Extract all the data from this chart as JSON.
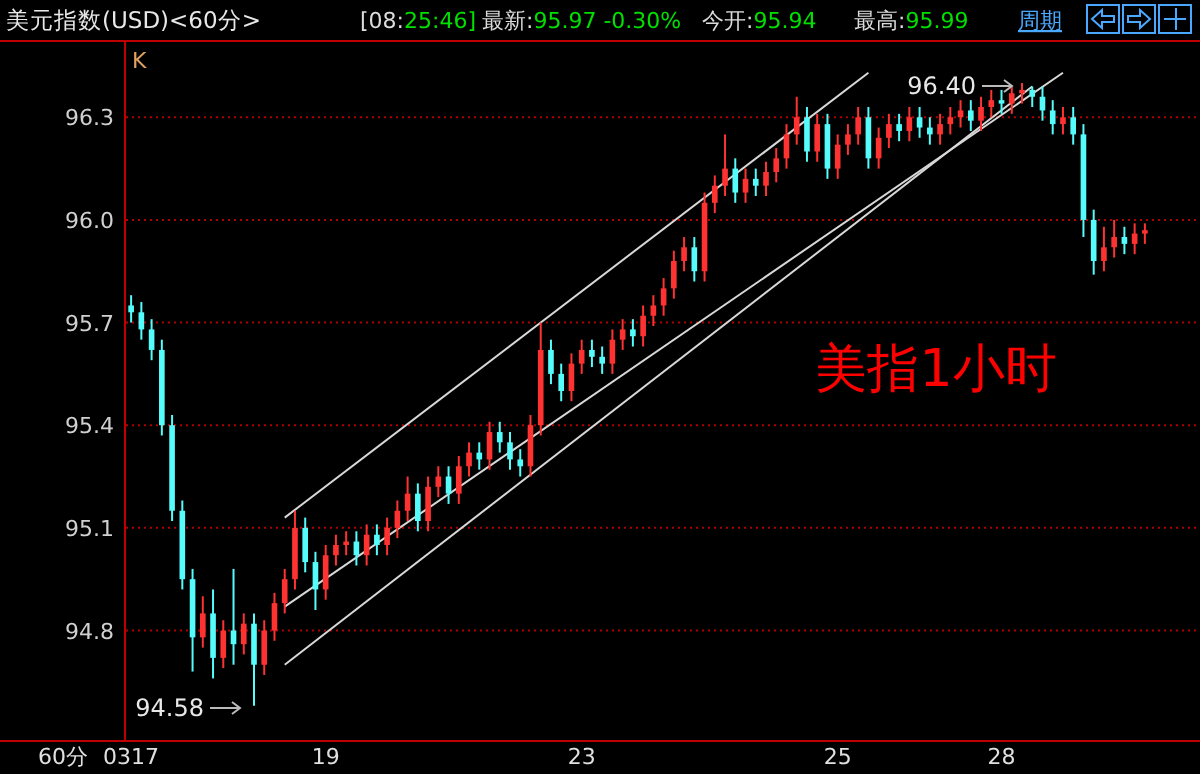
{
  "chart_data": {
    "type": "candlestick",
    "title": "美元指数(USD)<60分>",
    "xlabel": "60分",
    "categories": [
      "0317",
      null,
      null,
      null,
      null,
      null,
      null,
      null,
      null,
      null,
      null,
      null,
      null,
      null,
      null,
      null,
      null,
      null,
      null,
      "19",
      null,
      null,
      null,
      null,
      null,
      null,
      null,
      null,
      null,
      null,
      null,
      null,
      null,
      null,
      null,
      null,
      null,
      null,
      null,
      null,
      null,
      null,
      null,
      null,
      "23",
      null,
      null,
      null,
      null,
      null,
      null,
      null,
      null,
      null,
      null,
      null,
      null,
      null,
      null,
      null,
      null,
      null,
      null,
      null,
      null,
      null,
      null,
      null,
      null,
      "25",
      null,
      null,
      null,
      null,
      null,
      null,
      null,
      null,
      null,
      null,
      null,
      null,
      null,
      null,
      null,
      "28",
      null,
      null,
      null,
      null,
      null,
      null,
      null,
      null,
      null,
      null,
      null,
      null,
      null,
      null
    ],
    "ohlc": [
      [
        95.75,
        95.78,
        95.7,
        95.73
      ],
      [
        95.73,
        95.76,
        95.65,
        95.68
      ],
      [
        95.68,
        95.71,
        95.59,
        95.62
      ],
      [
        95.62,
        95.65,
        95.37,
        95.4
      ],
      [
        95.4,
        95.43,
        95.12,
        95.15
      ],
      [
        95.15,
        95.18,
        94.92,
        94.95
      ],
      [
        94.95,
        94.98,
        94.68,
        94.78
      ],
      [
        94.78,
        94.9,
        94.75,
        94.85
      ],
      [
        94.85,
        94.92,
        94.66,
        94.72
      ],
      [
        94.72,
        94.83,
        94.69,
        94.8
      ],
      [
        94.8,
        94.98,
        94.7,
        94.76
      ],
      [
        94.76,
        94.85,
        94.73,
        94.82
      ],
      [
        94.82,
        94.85,
        94.58,
        94.7
      ],
      [
        94.7,
        94.83,
        94.67,
        94.8
      ],
      [
        94.8,
        94.91,
        94.77,
        94.88
      ],
      [
        94.88,
        94.98,
        94.85,
        94.95
      ],
      [
        94.95,
        95.15,
        94.92,
        95.1
      ],
      [
        95.1,
        95.13,
        94.97,
        95.0
      ],
      [
        95.0,
        95.03,
        94.86,
        94.92
      ],
      [
        94.92,
        95.05,
        94.89,
        95.02
      ],
      [
        95.02,
        95.08,
        94.99,
        95.05
      ],
      [
        95.05,
        95.09,
        95.02,
        95.06
      ],
      [
        95.06,
        95.09,
        94.99,
        95.02
      ],
      [
        95.02,
        95.11,
        94.99,
        95.08
      ],
      [
        95.08,
        95.11,
        95.02,
        95.05
      ],
      [
        95.05,
        95.13,
        95.02,
        95.1
      ],
      [
        95.1,
        95.18,
        95.07,
        95.15
      ],
      [
        95.15,
        95.25,
        95.12,
        95.2
      ],
      [
        95.2,
        95.23,
        95.09,
        95.12
      ],
      [
        95.12,
        95.25,
        95.09,
        95.22
      ],
      [
        95.22,
        95.28,
        95.19,
        95.25
      ],
      [
        95.25,
        95.28,
        95.17,
        95.2
      ],
      [
        95.2,
        95.31,
        95.17,
        95.28
      ],
      [
        95.28,
        95.35,
        95.25,
        95.32
      ],
      [
        95.32,
        95.35,
        95.27,
        95.3
      ],
      [
        95.3,
        95.41,
        95.27,
        95.38
      ],
      [
        95.38,
        95.41,
        95.32,
        95.35
      ],
      [
        95.35,
        95.38,
        95.27,
        95.3
      ],
      [
        95.3,
        95.33,
        95.25,
        95.28
      ],
      [
        95.28,
        95.43,
        95.25,
        95.4
      ],
      [
        95.4,
        95.7,
        95.37,
        95.62
      ],
      [
        95.62,
        95.65,
        95.52,
        95.55
      ],
      [
        95.55,
        95.58,
        95.47,
        95.5
      ],
      [
        95.5,
        95.61,
        95.47,
        95.58
      ],
      [
        95.58,
        95.65,
        95.55,
        95.62
      ],
      [
        95.62,
        95.65,
        95.57,
        95.6
      ],
      [
        95.6,
        95.63,
        95.55,
        95.58
      ],
      [
        95.58,
        95.68,
        95.55,
        95.65
      ],
      [
        95.65,
        95.71,
        95.62,
        95.68
      ],
      [
        95.68,
        95.71,
        95.63,
        95.66
      ],
      [
        95.66,
        95.75,
        95.63,
        95.72
      ],
      [
        95.72,
        95.78,
        95.69,
        95.75
      ],
      [
        95.75,
        95.83,
        95.72,
        95.8
      ],
      [
        95.8,
        95.91,
        95.77,
        95.88
      ],
      [
        95.88,
        95.95,
        95.85,
        95.92
      ],
      [
        95.92,
        95.95,
        95.82,
        95.85
      ],
      [
        95.85,
        96.08,
        95.82,
        96.05
      ],
      [
        96.05,
        96.13,
        96.02,
        96.1
      ],
      [
        96.1,
        96.25,
        96.07,
        96.15
      ],
      [
        96.15,
        96.18,
        96.05,
        96.08
      ],
      [
        96.08,
        96.15,
        96.05,
        96.12
      ],
      [
        96.12,
        96.15,
        96.07,
        96.1
      ],
      [
        96.1,
        96.17,
        96.07,
        96.14
      ],
      [
        96.14,
        96.21,
        96.11,
        96.18
      ],
      [
        96.18,
        96.28,
        96.15,
        96.25
      ],
      [
        96.25,
        96.36,
        96.22,
        96.3
      ],
      [
        96.3,
        96.33,
        96.17,
        96.2
      ],
      [
        96.2,
        96.31,
        96.17,
        96.28
      ],
      [
        96.28,
        96.31,
        96.12,
        96.15
      ],
      [
        96.15,
        96.25,
        96.12,
        96.22
      ],
      [
        96.22,
        96.28,
        96.19,
        96.25
      ],
      [
        96.25,
        96.33,
        96.22,
        96.3
      ],
      [
        96.3,
        96.33,
        96.15,
        96.18
      ],
      [
        96.18,
        96.27,
        96.15,
        96.24
      ],
      [
        96.24,
        96.31,
        96.21,
        96.28
      ],
      [
        96.28,
        96.31,
        96.23,
        96.26
      ],
      [
        96.26,
        96.33,
        96.23,
        96.3
      ],
      [
        96.3,
        96.33,
        96.24,
        96.27
      ],
      [
        96.27,
        96.3,
        96.22,
        96.25
      ],
      [
        96.25,
        96.31,
        96.22,
        96.28
      ],
      [
        96.28,
        96.33,
        96.25,
        96.3
      ],
      [
        96.3,
        96.35,
        96.27,
        96.32
      ],
      [
        96.32,
        96.35,
        96.26,
        96.29
      ],
      [
        96.29,
        96.36,
        96.26,
        96.33
      ],
      [
        96.33,
        96.38,
        96.3,
        96.35
      ],
      [
        96.35,
        96.38,
        96.31,
        96.34
      ],
      [
        96.34,
        96.39,
        96.31,
        96.37
      ],
      [
        96.37,
        96.4,
        96.34,
        96.38
      ],
      [
        96.38,
        96.39,
        96.33,
        96.36
      ],
      [
        96.36,
        96.39,
        96.29,
        96.32
      ],
      [
        96.32,
        96.35,
        96.25,
        96.28
      ],
      [
        96.28,
        96.33,
        96.25,
        96.3
      ],
      [
        96.3,
        96.33,
        96.22,
        96.25
      ],
      [
        96.25,
        96.28,
        95.95,
        96.0
      ],
      [
        96.0,
        96.03,
        95.84,
        95.88
      ],
      [
        95.88,
        95.98,
        95.85,
        95.92
      ],
      [
        95.92,
        96.0,
        95.89,
        95.95
      ],
      [
        95.95,
        95.98,
        95.9,
        95.93
      ],
      [
        95.93,
        95.99,
        95.9,
        95.96
      ],
      [
        95.96,
        95.99,
        95.93,
        95.97
      ]
    ],
    "colors": [
      "#54fcfc",
      "#54fcfc",
      "#54fcfc",
      "#54fcfc",
      "#54fcfc",
      "#54fcfc",
      "#54fcfc",
      "#ff3232",
      "#54fcfc",
      "#ff3232",
      "#54fcfc",
      "#ff3232",
      "#54fcfc",
      "#ff3232",
      "#ff3232",
      "#ff3232",
      "#ff3232",
      "#54fcfc",
      "#54fcfc",
      "#ff3232",
      "#ff3232",
      "#ff3232",
      "#54fcfc",
      "#ff3232",
      "#54fcfc",
      "#ff3232",
      "#ff3232",
      "#ff3232",
      "#54fcfc",
      "#ff3232",
      "#ff3232",
      "#54fcfc",
      "#ff3232",
      "#ff3232",
      "#54fcfc",
      "#ff3232",
      "#54fcfc",
      "#54fcfc",
      "#54fcfc",
      "#ff3232",
      "#ff3232",
      "#54fcfc",
      "#54fcfc",
      "#ff3232",
      "#ff3232",
      "#54fcfc",
      "#54fcfc",
      "#ff3232",
      "#ff3232",
      "#54fcfc",
      "#ff3232",
      "#ff3232",
      "#ff3232",
      "#ff3232",
      "#ff3232",
      "#54fcfc",
      "#ff3232",
      "#ff3232",
      "#ff3232",
      "#54fcfc",
      "#ff3232",
      "#54fcfc",
      "#ff3232",
      "#ff3232",
      "#ff3232",
      "#ff3232",
      "#54fcfc",
      "#ff3232",
      "#54fcfc",
      "#ff3232",
      "#ff3232",
      "#ff3232",
      "#54fcfc",
      "#ff3232",
      "#ff3232",
      "#54fcfc",
      "#ff3232",
      "#54fcfc",
      "#54fcfc",
      "#ff3232",
      "#ff3232",
      "#ff3232",
      "#54fcfc",
      "#ff3232",
      "#ff3232",
      "#54fcfc",
      "#ff3232",
      "#ff3232",
      "#54fcfc",
      "#54fcfc",
      "#54fcfc",
      "#ff3232",
      "#54fcfc",
      "#54fcfc",
      "#54fcfc",
      "#ff3232",
      "#ff3232",
      "#54fcfc",
      "#ff3232",
      "#ff3232"
    ],
    "series": [
      {
        "type": "line",
        "color": "#d8d8d8",
        "values": [
          null,
          null,
          null,
          null,
          null,
          null,
          null,
          null,
          null,
          null,
          null,
          null,
          null,
          null,
          null,
          95.13,
          null,
          null,
          null,
          null,
          null,
          null,
          null,
          null,
          null,
          null,
          null,
          null,
          null,
          null,
          null,
          null,
          null,
          null,
          null,
          null,
          null,
          null,
          null,
          null,
          null,
          null,
          null,
          null,
          null,
          null,
          null,
          null,
          null,
          null,
          null,
          null,
          null,
          null,
          null,
          null,
          null,
          null,
          null,
          null,
          null,
          null,
          null,
          null,
          null,
          null,
          null,
          null,
          null,
          null,
          null,
          null,
          96.43,
          null,
          null,
          null,
          null,
          null,
          null,
          null,
          null,
          null,
          null,
          null,
          null,
          null,
          null,
          null,
          null,
          null,
          null,
          null,
          null,
          null,
          null,
          null,
          null,
          null,
          null,
          null
        ]
      },
      {
        "type": "line",
        "color": "#d8d8d8",
        "values": [
          null,
          null,
          null,
          null,
          null,
          null,
          null,
          null,
          null,
          null,
          null,
          null,
          null,
          null,
          null,
          94.87,
          null,
          null,
          null,
          null,
          null,
          null,
          null,
          null,
          null,
          null,
          null,
          null,
          null,
          null,
          null,
          null,
          null,
          null,
          null,
          null,
          null,
          null,
          null,
          null,
          null,
          null,
          null,
          null,
          null,
          null,
          null,
          null,
          null,
          null,
          null,
          null,
          null,
          null,
          null,
          null,
          null,
          null,
          null,
          null,
          null,
          null,
          null,
          null,
          null,
          null,
          null,
          null,
          null,
          null,
          null,
          null,
          null,
          null,
          null,
          null,
          null,
          null,
          null,
          null,
          null,
          null,
          null,
          null,
          null,
          null,
          null,
          null,
          null,
          null,
          null,
          96.43,
          null,
          null,
          null,
          null,
          null,
          null,
          null,
          null
        ]
      },
      {
        "type": "line",
        "color": "#d8d8d8",
        "values": [
          null,
          null,
          null,
          null,
          null,
          null,
          null,
          null,
          null,
          null,
          null,
          null,
          null,
          null,
          null,
          94.7,
          null,
          null,
          null,
          null,
          null,
          null,
          null,
          null,
          null,
          null,
          null,
          null,
          null,
          null,
          null,
          null,
          null,
          null,
          null,
          null,
          null,
          null,
          null,
          null,
          null,
          null,
          null,
          null,
          null,
          null,
          null,
          null,
          null,
          null,
          null,
          null,
          null,
          null,
          null,
          null,
          null,
          null,
          null,
          null,
          null,
          null,
          null,
          null,
          null,
          null,
          null,
          null,
          null,
          null,
          null,
          null,
          null,
          null,
          null,
          null,
          null,
          null,
          null,
          null,
          null,
          null,
          null,
          null,
          null,
          null,
          null,
          null,
          96.39,
          null,
          null,
          null,
          null,
          null,
          null,
          null,
          null,
          null,
          null,
          null
        ]
      }
    ],
    "ylim": [
      94.48,
      96.52
    ],
    "yticks": [
      94.8,
      95.1,
      95.4,
      95.7,
      {
        "value": 96,
        "label": "96.0"
      },
      96.3
    ],
    "grid": "y",
    "annotations": [
      "[08:25:46]",
      "最新:95.97 -0.30%",
      "今开:95.94",
      "最高:95.99",
      "周期",
      "K",
      "美指1小时",
      "94.58",
      "96.40"
    ]
  }
}
